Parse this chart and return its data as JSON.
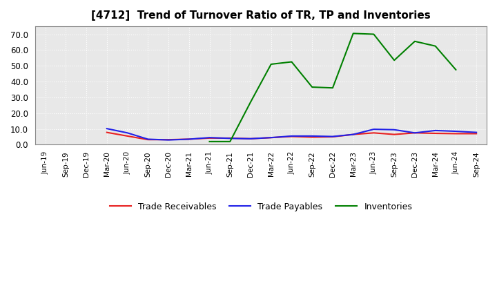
{
  "title": "[4712]  Trend of Turnover Ratio of TR, TP and Inventories",
  "x_labels": [
    "Jun-19",
    "Sep-19",
    "Dec-19",
    "Mar-20",
    "Jun-20",
    "Sep-20",
    "Dec-20",
    "Mar-21",
    "Jun-21",
    "Sep-21",
    "Dec-21",
    "Mar-22",
    "Jun-22",
    "Sep-22",
    "Dec-22",
    "Mar-23",
    "Jun-23",
    "Sep-23",
    "Dec-23",
    "Mar-24",
    "Jun-24",
    "Sep-24"
  ],
  "trade_receivables": [
    null,
    null,
    null,
    7.8,
    5.5,
    3.2,
    3.2,
    3.5,
    4.2,
    4.2,
    3.8,
    4.5,
    5.2,
    4.8,
    5.0,
    6.5,
    7.5,
    6.5,
    7.5,
    7.2,
    7.0,
    7.0
  ],
  "trade_payables": [
    null,
    null,
    null,
    10.2,
    7.5,
    3.5,
    3.0,
    3.5,
    4.5,
    4.0,
    3.8,
    4.5,
    5.5,
    5.5,
    5.2,
    6.5,
    9.8,
    9.5,
    7.5,
    9.0,
    8.5,
    7.8
  ],
  "inventories": [
    null,
    null,
    null,
    null,
    null,
    null,
    null,
    null,
    2.0,
    2.0,
    27.0,
    51.0,
    52.5,
    36.5,
    36.0,
    70.5,
    70.0,
    53.5,
    65.5,
    62.5,
    47.5,
    null
  ],
  "ylim": [
    0,
    75
  ],
  "yticks": [
    0.0,
    10.0,
    20.0,
    30.0,
    40.0,
    50.0,
    60.0,
    70.0
  ],
  "color_tr": "#e82020",
  "color_tp": "#2020e8",
  "color_inv": "#008000",
  "legend_labels": [
    "Trade Receivables",
    "Trade Payables",
    "Inventories"
  ],
  "background_color": "#ffffff",
  "plot_bg_color": "#e8e8e8",
  "grid_color": "#ffffff",
  "grid_linestyle": ":",
  "linewidth": 1.5
}
